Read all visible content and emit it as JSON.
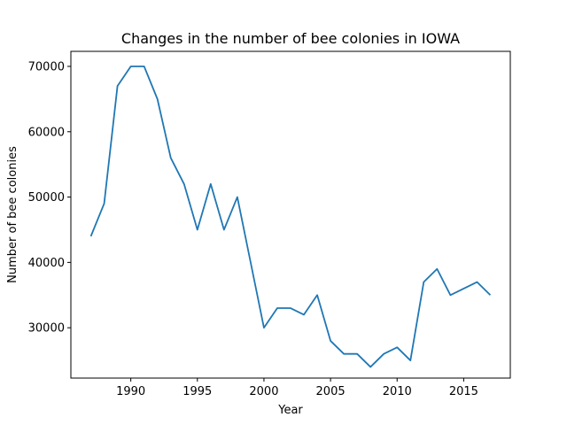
{
  "chart_data": {
    "type": "line",
    "title": "Changes in the number of bee colonies in IOWA",
    "xlabel": "Year",
    "ylabel": "Number of bee colonies",
    "xlim": [
      1985.5,
      2018.5
    ],
    "ylim": [
      22300,
      72300
    ],
    "xticks": [
      1990,
      1995,
      2000,
      2005,
      2010,
      2015
    ],
    "yticks": [
      30000,
      40000,
      50000,
      60000,
      70000
    ],
    "grid": false,
    "color": "#1f77b4",
    "series": [
      {
        "x": [
          1987,
          1988,
          1989,
          1990,
          1991,
          1992,
          1993,
          1994,
          1995,
          1996,
          1997,
          1998,
          1999,
          2000,
          2001,
          2002,
          2003,
          2004,
          2005,
          2006,
          2007,
          2008,
          2009,
          2010,
          2011,
          2012,
          2013,
          2014,
          2015,
          2016,
          2017
        ],
        "y": [
          44000,
          49000,
          67000,
          70000,
          70000,
          65000,
          56000,
          52000,
          45000,
          52000,
          45000,
          50000,
          40000,
          30000,
          33000,
          33000,
          32000,
          35000,
          28000,
          26000,
          26000,
          24000,
          26000,
          27000,
          25000,
          37000,
          39000,
          35000,
          36000,
          37000,
          35000
        ]
      }
    ]
  }
}
